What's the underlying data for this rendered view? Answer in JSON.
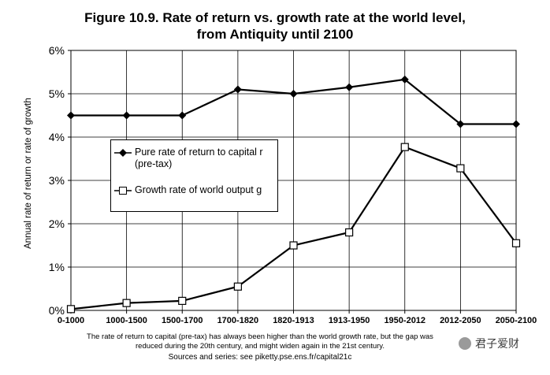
{
  "chart_data": {
    "type": "line",
    "title_line1": "Figure 10.9. Rate of return vs. growth rate at the world level,",
    "title_line2": "from Antiquity until 2100",
    "ylabel": "Annual rate of return or rate of growth",
    "xlabel": "",
    "categories": [
      "0-1000",
      "1000-1500",
      "1500-1700",
      "1700-1820",
      "1820-1913",
      "1913-1950",
      "1950-2012",
      "2012-2050",
      "2050-2100"
    ],
    "ylim": [
      0,
      6
    ],
    "yticks": [
      "0%",
      "1%",
      "2%",
      "3%",
      "4%",
      "5%",
      "6%"
    ],
    "grid": true,
    "legend_position": "middle-left",
    "series": [
      {
        "name": "Pure rate of return to capital r (pre-tax)",
        "legend_line1": "Pure rate of return to capital r",
        "legend_line2": "(pre-tax)",
        "marker": "filled-diamond",
        "color": "#000000",
        "values": [
          4.5,
          4.5,
          4.5,
          5.1,
          5.0,
          5.15,
          5.33,
          4.3,
          4.3
        ]
      },
      {
        "name": "Growth rate of world output g",
        "legend_line1": "Growth rate of world output g",
        "marker": "open-square",
        "color": "#000000",
        "values": [
          0.03,
          0.17,
          0.22,
          0.55,
          1.5,
          1.8,
          3.77,
          3.28,
          1.55
        ]
      }
    ]
  },
  "note_line1": "The rate of return to capital (pre-tax) has always been higher than the world growth rate, but the gap was",
  "note_line2": "reduced during the 20th century, and might widen again in the 21st century.",
  "source": "Sources and series: see piketty.pse.ens.fr/capital21c",
  "watermark_text": "君子爱财"
}
